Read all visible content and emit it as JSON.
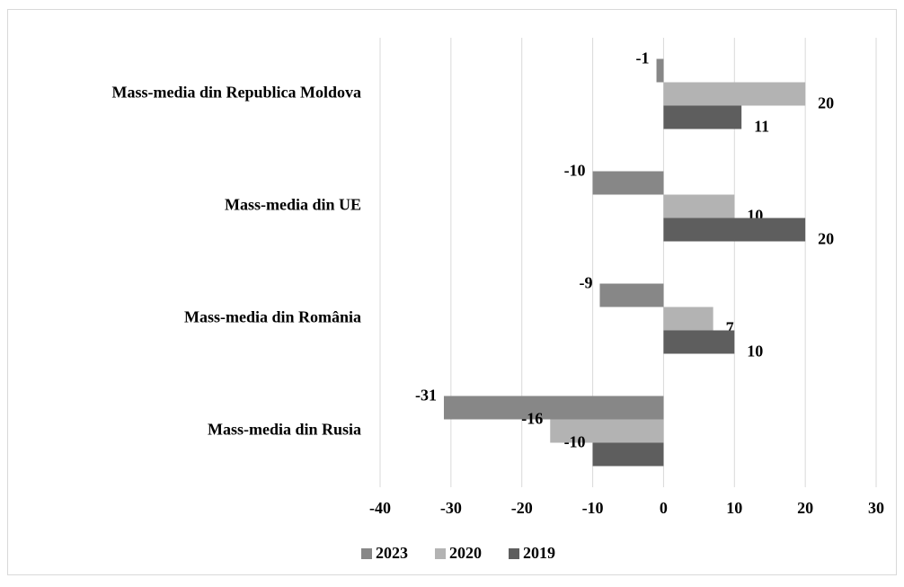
{
  "chart_data": {
    "type": "hbar",
    "categories": [
      "Mass-media din Republica Moldova",
      "Mass-media din UE",
      "Mass-media din România",
      "Mass-media din Rusia"
    ],
    "series": [
      {
        "name": "2023",
        "color": "#878787",
        "values": [
          -1,
          -10,
          -9,
          -31
        ]
      },
      {
        "name": "2020",
        "color": "#b3b3b3",
        "values": [
          20,
          10,
          7,
          -16
        ]
      },
      {
        "name": "2019",
        "color": "#5e5e5e",
        "values": [
          11,
          20,
          10,
          -10
        ]
      }
    ],
    "xlim": [
      -40,
      30
    ],
    "xticks": [
      -40,
      -30,
      -20,
      -10,
      0,
      10,
      20,
      30
    ],
    "grid": true,
    "legend": "bottom"
  }
}
